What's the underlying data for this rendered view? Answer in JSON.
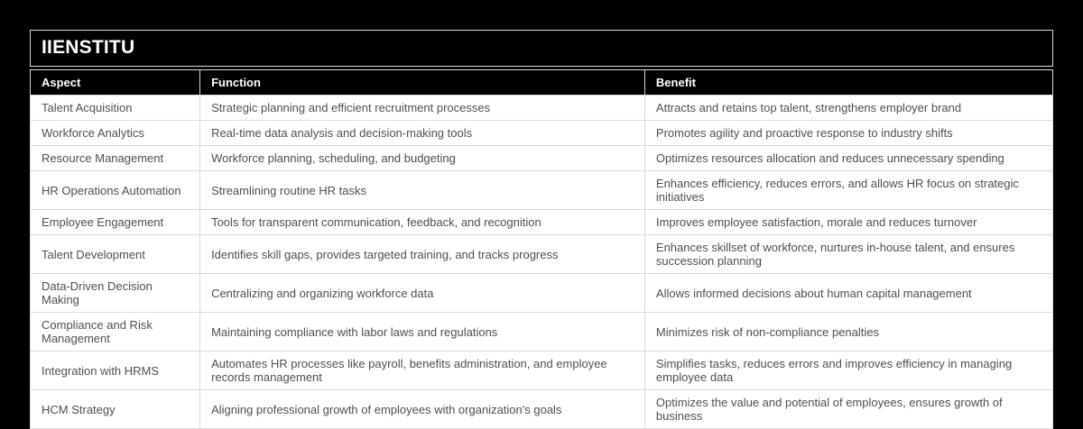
{
  "page": {
    "title": "IIENSTITU"
  },
  "table": {
    "columns": [
      "Aspect",
      "Function",
      "Benefit"
    ],
    "rows": [
      {
        "aspect": "Talent Acquisition",
        "function": "Strategic planning and efficient recruitment processes",
        "benefit": "Attracts and retains top talent, strengthens employer brand"
      },
      {
        "aspect": "Workforce Analytics",
        "function": "Real-time data analysis and decision-making tools",
        "benefit": "Promotes agility and proactive response to industry shifts"
      },
      {
        "aspect": "Resource Management",
        "function": "Workforce planning, scheduling, and budgeting",
        "benefit": "Optimizes resources allocation and reduces unnecessary spending"
      },
      {
        "aspect": "HR Operations Automation",
        "function": "Streamlining routine HR tasks",
        "benefit": "Enhances efficiency, reduces errors, and allows HR focus on strategic initiatives"
      },
      {
        "aspect": "Employee Engagement",
        "function": "Tools for transparent communication, feedback, and recognition",
        "benefit": "Improves employee satisfaction, morale and reduces turnover"
      },
      {
        "aspect": "Talent Development",
        "function": "Identifies skill gaps, provides targeted training, and tracks progress",
        "benefit": "Enhances skillset of workforce, nurtures in-house talent, and ensures succession planning"
      },
      {
        "aspect": "Data-Driven Decision Making",
        "function": "Centralizing and organizing workforce data",
        "benefit": "Allows informed decisions about human capital management"
      },
      {
        "aspect": "Compliance and Risk Management",
        "function": "Maintaining compliance with labor laws and regulations",
        "benefit": "Minimizes risk of non-compliance penalties"
      },
      {
        "aspect": "Integration with HRMS",
        "function": "Automates HR processes like payroll, benefits administration, and employee records management",
        "benefit": "Simplifies tasks, reduces errors and improves efficiency in managing employee data"
      },
      {
        "aspect": "HCM Strategy",
        "function": "Aligning professional growth of employees with organization's goals",
        "benefit": "Optimizes the value and potential of employees, ensures growth of business"
      }
    ]
  },
  "colors": {
    "page_background": "#000000",
    "header_background": "#000000",
    "header_text": "#ffffff",
    "body_text": "#4f4f4f",
    "row_background": "#ffffff",
    "border": "#d9d9d9"
  }
}
